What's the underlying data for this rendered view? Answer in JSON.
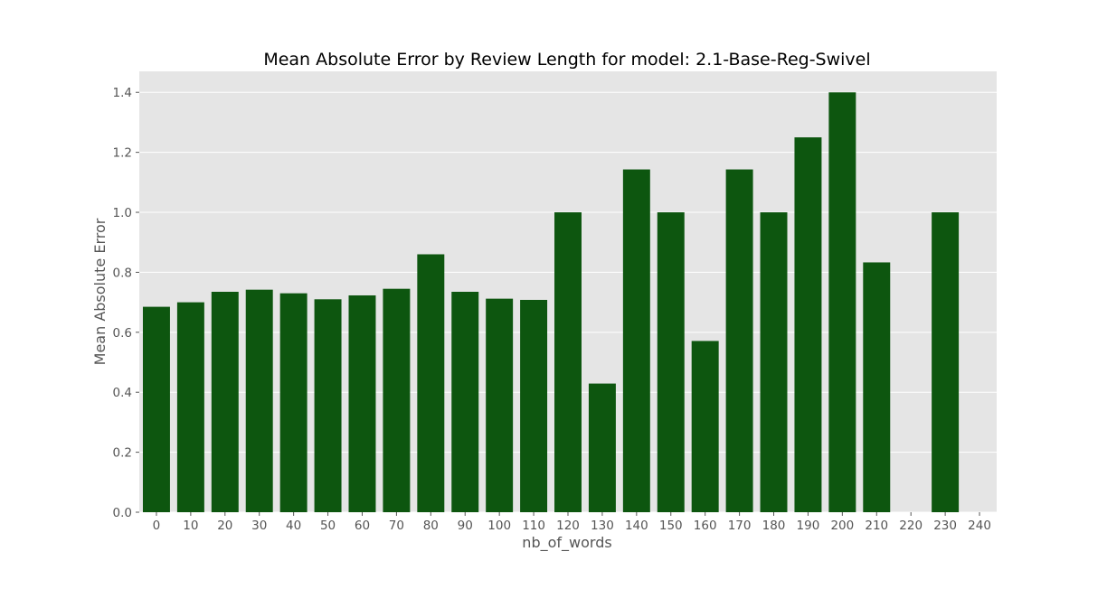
{
  "chart_data": {
    "type": "bar",
    "title": "Mean Absolute Error by Review Length for model: 2.1-Base-Reg-Swivel",
    "xlabel": "nb_of_words",
    "ylabel": "Mean Absolute Error",
    "categories": [
      "0",
      "10",
      "20",
      "30",
      "40",
      "50",
      "60",
      "70",
      "80",
      "90",
      "100",
      "110",
      "120",
      "130",
      "140",
      "150",
      "160",
      "170",
      "180",
      "190",
      "200",
      "210",
      "220",
      "230",
      "240"
    ],
    "values": [
      0.685,
      0.7,
      0.735,
      0.742,
      0.73,
      0.71,
      0.723,
      0.745,
      0.86,
      0.735,
      0.712,
      0.708,
      1.0,
      0.429,
      1.143,
      1.0,
      0.571,
      1.143,
      1.0,
      1.25,
      1.4,
      0.833,
      null,
      1.0,
      null
    ],
    "ylim": [
      0,
      1.47
    ],
    "yticks": [
      0.0,
      0.2,
      0.4,
      0.6,
      0.8,
      1.0,
      1.2,
      1.4
    ],
    "ytick_labels": [
      "0.0",
      "0.2",
      "0.4",
      "0.6",
      "0.8",
      "1.0",
      "1.2",
      "1.4"
    ],
    "grid": true,
    "legend": "none",
    "colors": {
      "bar": "#0d560f",
      "plot_background": "#e5e5e5",
      "grid": "#ffffff",
      "text": "#555555",
      "title": "#000000"
    }
  }
}
